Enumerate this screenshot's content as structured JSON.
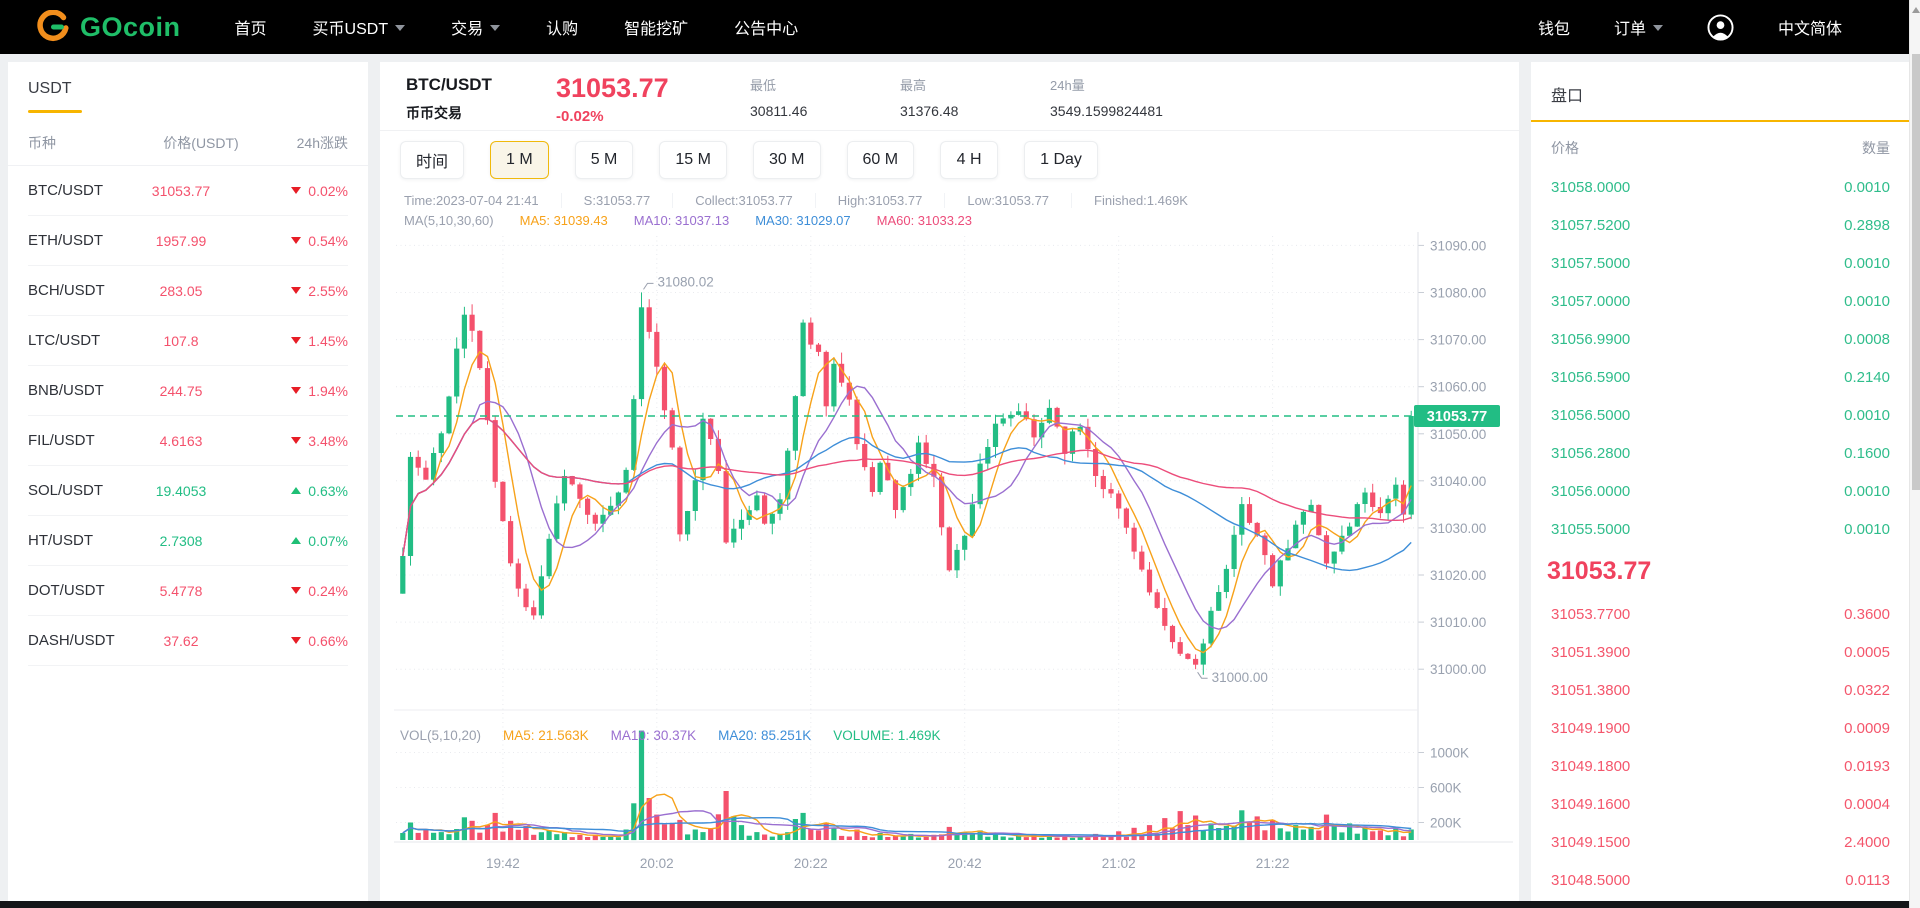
{
  "navbar": {
    "logo_text": "GOcoin",
    "items": [
      {
        "label": "首页",
        "dropdown": false
      },
      {
        "label": "买币USDT",
        "dropdown": true
      },
      {
        "label": "交易",
        "dropdown": true
      },
      {
        "label": "认购",
        "dropdown": false
      },
      {
        "label": "智能挖矿",
        "dropdown": false
      },
      {
        "label": "公告中心",
        "dropdown": false
      }
    ],
    "right_items": [
      {
        "label": "钱包",
        "dropdown": false
      },
      {
        "label": "订单",
        "dropdown": true
      }
    ],
    "language": "中文简体"
  },
  "market_panel": {
    "tab": "USDT",
    "headers": {
      "coin": "币种",
      "price": "价格(USDT)",
      "change": "24h涨跌"
    },
    "rows": [
      {
        "pair": "BTC/USDT",
        "price": "31053.77",
        "change": "0.02%",
        "dir": "down"
      },
      {
        "pair": "ETH/USDT",
        "price": "1957.99",
        "change": "0.54%",
        "dir": "down"
      },
      {
        "pair": "BCH/USDT",
        "price": "283.05",
        "change": "2.55%",
        "dir": "down"
      },
      {
        "pair": "LTC/USDT",
        "price": "107.8",
        "change": "1.45%",
        "dir": "down"
      },
      {
        "pair": "BNB/USDT",
        "price": "244.75",
        "change": "1.94%",
        "dir": "down"
      },
      {
        "pair": "FIL/USDT",
        "price": "4.6163",
        "change": "3.48%",
        "dir": "down"
      },
      {
        "pair": "SOL/USDT",
        "price": "19.4053",
        "change": "0.63%",
        "dir": "up"
      },
      {
        "pair": "HT/USDT",
        "price": "2.7308",
        "change": "0.07%",
        "dir": "up"
      },
      {
        "pair": "DOT/USDT",
        "price": "5.4778",
        "change": "0.24%",
        "dir": "down"
      },
      {
        "pair": "DASH/USDT",
        "price": "37.62",
        "change": "0.66%",
        "dir": "down"
      }
    ]
  },
  "ticker": {
    "pair": "BTC/USDT",
    "market_type": "币币交易",
    "price": "31053.77",
    "change": "-0.02%",
    "low_label": "最低",
    "low": "30811.46",
    "high_label": "最高",
    "high": "31376.48",
    "vol_label": "24h量",
    "volume": "3549.1599824481"
  },
  "intervals": {
    "label": "时间",
    "options": [
      "1 M",
      "5 M",
      "15 M",
      "30 M",
      "60 M",
      "4 H",
      "1 Day"
    ],
    "selected": "1 M"
  },
  "ohlc_info": {
    "items": [
      "Time:2023-07-04 21:41",
      "S:31053.77",
      "Collect:31053.77",
      "High:31053.77",
      "Low:31053.77",
      "Finished:1.469K"
    ]
  },
  "ma_legend": {
    "items": [
      {
        "text": "MA(5,10,30,60)",
        "color": "#9aa0ae"
      },
      {
        "text": "MA5: 31039.43",
        "color": "#f7a21a"
      },
      {
        "text": "MA10: 31037.13",
        "color": "#9a6fd0"
      },
      {
        "text": "MA30: 31029.07",
        "color": "#3e8ed8"
      },
      {
        "text": "MA60: 31033.23",
        "color": "#ec4d7b"
      }
    ]
  },
  "vol_legend": {
    "items": [
      {
        "text": "VOL(5,10,20)",
        "color": "#9aa0ae"
      },
      {
        "text": "MA5: 21.563K",
        "color": "#f7a21a"
      },
      {
        "text": "MA10: 30.37K",
        "color": "#9a6fd0"
      },
      {
        "text": "MA20: 85.251K",
        "color": "#3e8ed8"
      },
      {
        "text": "VOLUME: 1.469K",
        "color": "#22bd84"
      }
    ]
  },
  "chart_data": {
    "type": "candlestick",
    "pair": "BTC/USDT",
    "interval": "1 M",
    "candle_count": 132,
    "ylim": [
      30996,
      31092
    ],
    "y_ticks": [
      "31090.00",
      "31080.00",
      "31070.00",
      "31060.00",
      "31050.00",
      "31040.00",
      "31030.00",
      "31020.00",
      "31010.00",
      "31000.00"
    ],
    "x_ticks": [
      {
        "idx": 13,
        "label": "19:42"
      },
      {
        "idx": 33,
        "label": "20:02"
      },
      {
        "idx": 53,
        "label": "20:22"
      },
      {
        "idx": 73,
        "label": "20:42"
      },
      {
        "idx": 93,
        "label": "21:02"
      },
      {
        "idx": 113,
        "label": "21:22"
      }
    ],
    "current_price": 31053.77,
    "annotations": {
      "high": {
        "idx": 31,
        "price": 31080.02,
        "label": "31080.02"
      },
      "low": {
        "idx": 103,
        "price": 31000.0,
        "label": "31000.00"
      }
    },
    "price_keyframes": [
      [
        0,
        31024
      ],
      [
        1,
        31045
      ],
      [
        3,
        31040
      ],
      [
        5,
        31050
      ],
      [
        7,
        31068
      ],
      [
        8,
        31075
      ],
      [
        9,
        31072
      ],
      [
        10,
        31064
      ],
      [
        12,
        31040
      ],
      [
        14,
        31022
      ],
      [
        16,
        31014
      ],
      [
        17,
        31012
      ],
      [
        19,
        31028
      ],
      [
        21,
        31042
      ],
      [
        23,
        31036
      ],
      [
        25,
        31030
      ],
      [
        27,
        31034
      ],
      [
        29,
        31042
      ],
      [
        30,
        31058
      ],
      [
        31,
        31078
      ],
      [
        32,
        31071
      ],
      [
        33,
        31063
      ],
      [
        35,
        31048
      ],
      [
        36,
        31028
      ],
      [
        38,
        31040
      ],
      [
        39,
        31053
      ],
      [
        41,
        31043
      ],
      [
        42,
        31026
      ],
      [
        44,
        31032
      ],
      [
        46,
        31038
      ],
      [
        47,
        31030
      ],
      [
        49,
        31036
      ],
      [
        51,
        31058
      ],
      [
        52,
        31073
      ],
      [
        54,
        31067
      ],
      [
        55,
        31057
      ],
      [
        56,
        31065
      ],
      [
        58,
        31056
      ],
      [
        59,
        31048
      ],
      [
        61,
        31038
      ],
      [
        62,
        31045
      ],
      [
        64,
        31034
      ],
      [
        66,
        31042
      ],
      [
        67,
        31048
      ],
      [
        69,
        31040
      ],
      [
        71,
        31022
      ],
      [
        73,
        31028
      ],
      [
        75,
        31044
      ],
      [
        77,
        31051
      ],
      [
        80,
        31055
      ],
      [
        82,
        31049
      ],
      [
        84,
        31056
      ],
      [
        86,
        31047
      ],
      [
        88,
        31052
      ],
      [
        90,
        31042
      ],
      [
        93,
        31034
      ],
      [
        95,
        31026
      ],
      [
        97,
        31016
      ],
      [
        99,
        31008
      ],
      [
        101,
        31003
      ],
      [
        103,
        31001
      ],
      [
        105,
        31012
      ],
      [
        107,
        31020
      ],
      [
        109,
        31036
      ],
      [
        111,
        31028
      ],
      [
        113,
        31018
      ],
      [
        116,
        31030
      ],
      [
        118,
        31036
      ],
      [
        120,
        31022
      ],
      [
        123,
        31031
      ],
      [
        125,
        31038
      ],
      [
        127,
        31033
      ],
      [
        129,
        31040
      ],
      [
        130,
        31032
      ],
      [
        131,
        31053.77
      ]
    ],
    "volume_keyframes": [
      [
        0,
        80
      ],
      [
        1,
        200
      ],
      [
        3,
        120
      ],
      [
        5,
        90
      ],
      [
        8,
        260
      ],
      [
        9,
        220
      ],
      [
        12,
        310
      ],
      [
        14,
        220
      ],
      [
        16,
        160
      ],
      [
        19,
        110
      ],
      [
        21,
        90
      ],
      [
        25,
        60
      ],
      [
        29,
        120
      ],
      [
        30,
        420
      ],
      [
        31,
        1250
      ],
      [
        32,
        480
      ],
      [
        33,
        290
      ],
      [
        35,
        190
      ],
      [
        36,
        230
      ],
      [
        38,
        120
      ],
      [
        39,
        90
      ],
      [
        42,
        560
      ],
      [
        44,
        170
      ],
      [
        46,
        90
      ],
      [
        49,
        70
      ],
      [
        51,
        240
      ],
      [
        52,
        310
      ],
      [
        55,
        190
      ],
      [
        56,
        140
      ],
      [
        59,
        120
      ],
      [
        62,
        80
      ],
      [
        66,
        70
      ],
      [
        69,
        60
      ],
      [
        71,
        150
      ],
      [
        73,
        90
      ],
      [
        75,
        110
      ],
      [
        77,
        80
      ],
      [
        82,
        70
      ],
      [
        86,
        60
      ],
      [
        90,
        70
      ],
      [
        93,
        100
      ],
      [
        95,
        140
      ],
      [
        97,
        170
      ],
      [
        99,
        250
      ],
      [
        101,
        330
      ],
      [
        103,
        280
      ],
      [
        105,
        190
      ],
      [
        107,
        160
      ],
      [
        109,
        340
      ],
      [
        111,
        270
      ],
      [
        113,
        230
      ],
      [
        116,
        170
      ],
      [
        118,
        150
      ],
      [
        120,
        290
      ],
      [
        123,
        190
      ],
      [
        125,
        150
      ],
      [
        127,
        110
      ],
      [
        129,
        130
      ],
      [
        131,
        120
      ]
    ],
    "volume_y_ticks": [
      {
        "v": 1000,
        "label": "1000K"
      },
      {
        "v": 600,
        "label": "600K"
      },
      {
        "v": 200,
        "label": "200K"
      }
    ]
  },
  "orderbook": {
    "title": "盘口",
    "price_header": "价格",
    "amount_header": "数量",
    "asks": [
      [
        "31058.0000",
        "0.0010"
      ],
      [
        "31057.5200",
        "0.2898"
      ],
      [
        "31057.5000",
        "0.0010"
      ],
      [
        "31057.0000",
        "0.0010"
      ],
      [
        "31056.9900",
        "0.0008"
      ],
      [
        "31056.5900",
        "0.2140"
      ],
      [
        "31056.5000",
        "0.0010"
      ],
      [
        "31056.2800",
        "0.1600"
      ],
      [
        "31056.0000",
        "0.0010"
      ],
      [
        "31055.5000",
        "0.0010"
      ]
    ],
    "last_price": "31053.77",
    "bids": [
      [
        "31053.7700",
        "0.3600"
      ],
      [
        "31051.3900",
        "0.0005"
      ],
      [
        "31051.3800",
        "0.0322"
      ],
      [
        "31049.1900",
        "0.0009"
      ],
      [
        "31049.1800",
        "0.0193"
      ],
      [
        "31049.1600",
        "0.0004"
      ],
      [
        "31049.1500",
        "2.4000"
      ],
      [
        "31048.5000",
        "0.0113"
      ]
    ]
  },
  "colors": {
    "up": "#22bd84",
    "down": "#f4516c",
    "ask": "#2fbd8b",
    "bid": "#f4566c",
    "price_red": "#f0425e",
    "tri_up": "#1fbf75",
    "tri_down": "#e71d25",
    "accent_yellow": "#f7b500",
    "ma5": "#f7a21a",
    "ma10": "#9a6fd0",
    "ma30": "#3e8ed8",
    "ma60": "#ec4d7b"
  }
}
